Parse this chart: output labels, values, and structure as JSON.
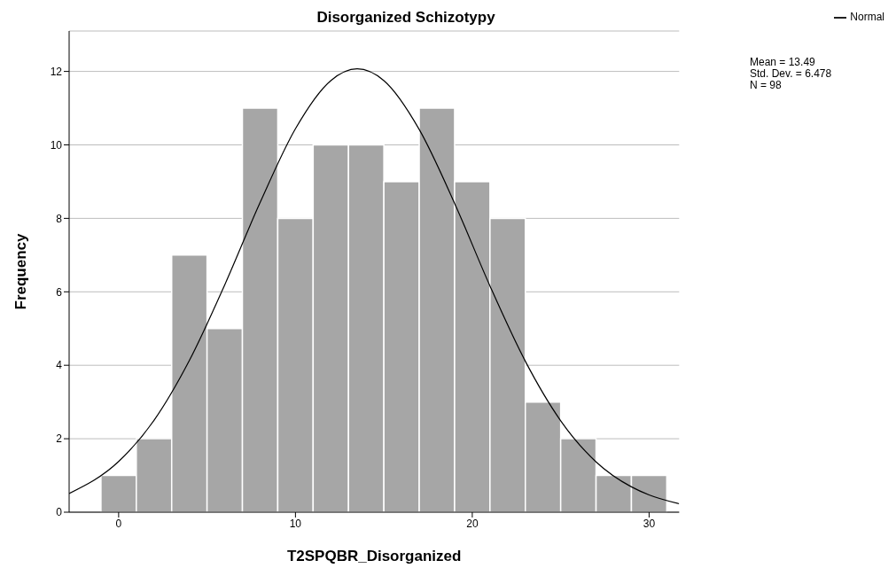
{
  "chart_data": {
    "type": "histogram",
    "title": "Disorganized Schizotypy",
    "xlabel": "T2SPQBR_Disorganized",
    "ylabel": "Frequency",
    "bins": [
      -1,
      1,
      3,
      5,
      7,
      9,
      11,
      13,
      15,
      17,
      19,
      21,
      23,
      25,
      27,
      29,
      31
    ],
    "values": [
      1,
      2,
      7,
      5,
      11,
      8,
      10,
      10,
      9,
      11,
      9,
      8,
      3,
      2,
      1,
      1
    ],
    "color": "#a6a6a6",
    "series": [
      {
        "type": "line",
        "name": "Normal",
        "color": "#000000",
        "x": [
          -2.8,
          0,
          2,
          4,
          6,
          8,
          10,
          12,
          13.49,
          15,
          17,
          19,
          21,
          23,
          25,
          27,
          29,
          30,
          31.7
        ],
        "values": [
          0.51,
          1.38,
          2.5,
          4.13,
          6.19,
          8.43,
          10.44,
          11.75,
          12.07,
          11.75,
          10.42,
          8.41,
          6.16,
          4.11,
          2.49,
          1.37,
          0.69,
          0.47,
          0.23
        ]
      }
    ],
    "xlim": [
      -2.8,
      31.7
    ],
    "xticks": [
      0,
      10,
      20,
      30
    ],
    "ylim": [
      0,
      13.1
    ],
    "yticks": [
      0,
      2,
      4,
      6,
      8,
      10,
      12
    ],
    "grid": "y",
    "legend": "top right",
    "annotations": [
      "Mean = 13.49",
      "Std. Dev. = 6.478",
      "N = 98"
    ]
  }
}
